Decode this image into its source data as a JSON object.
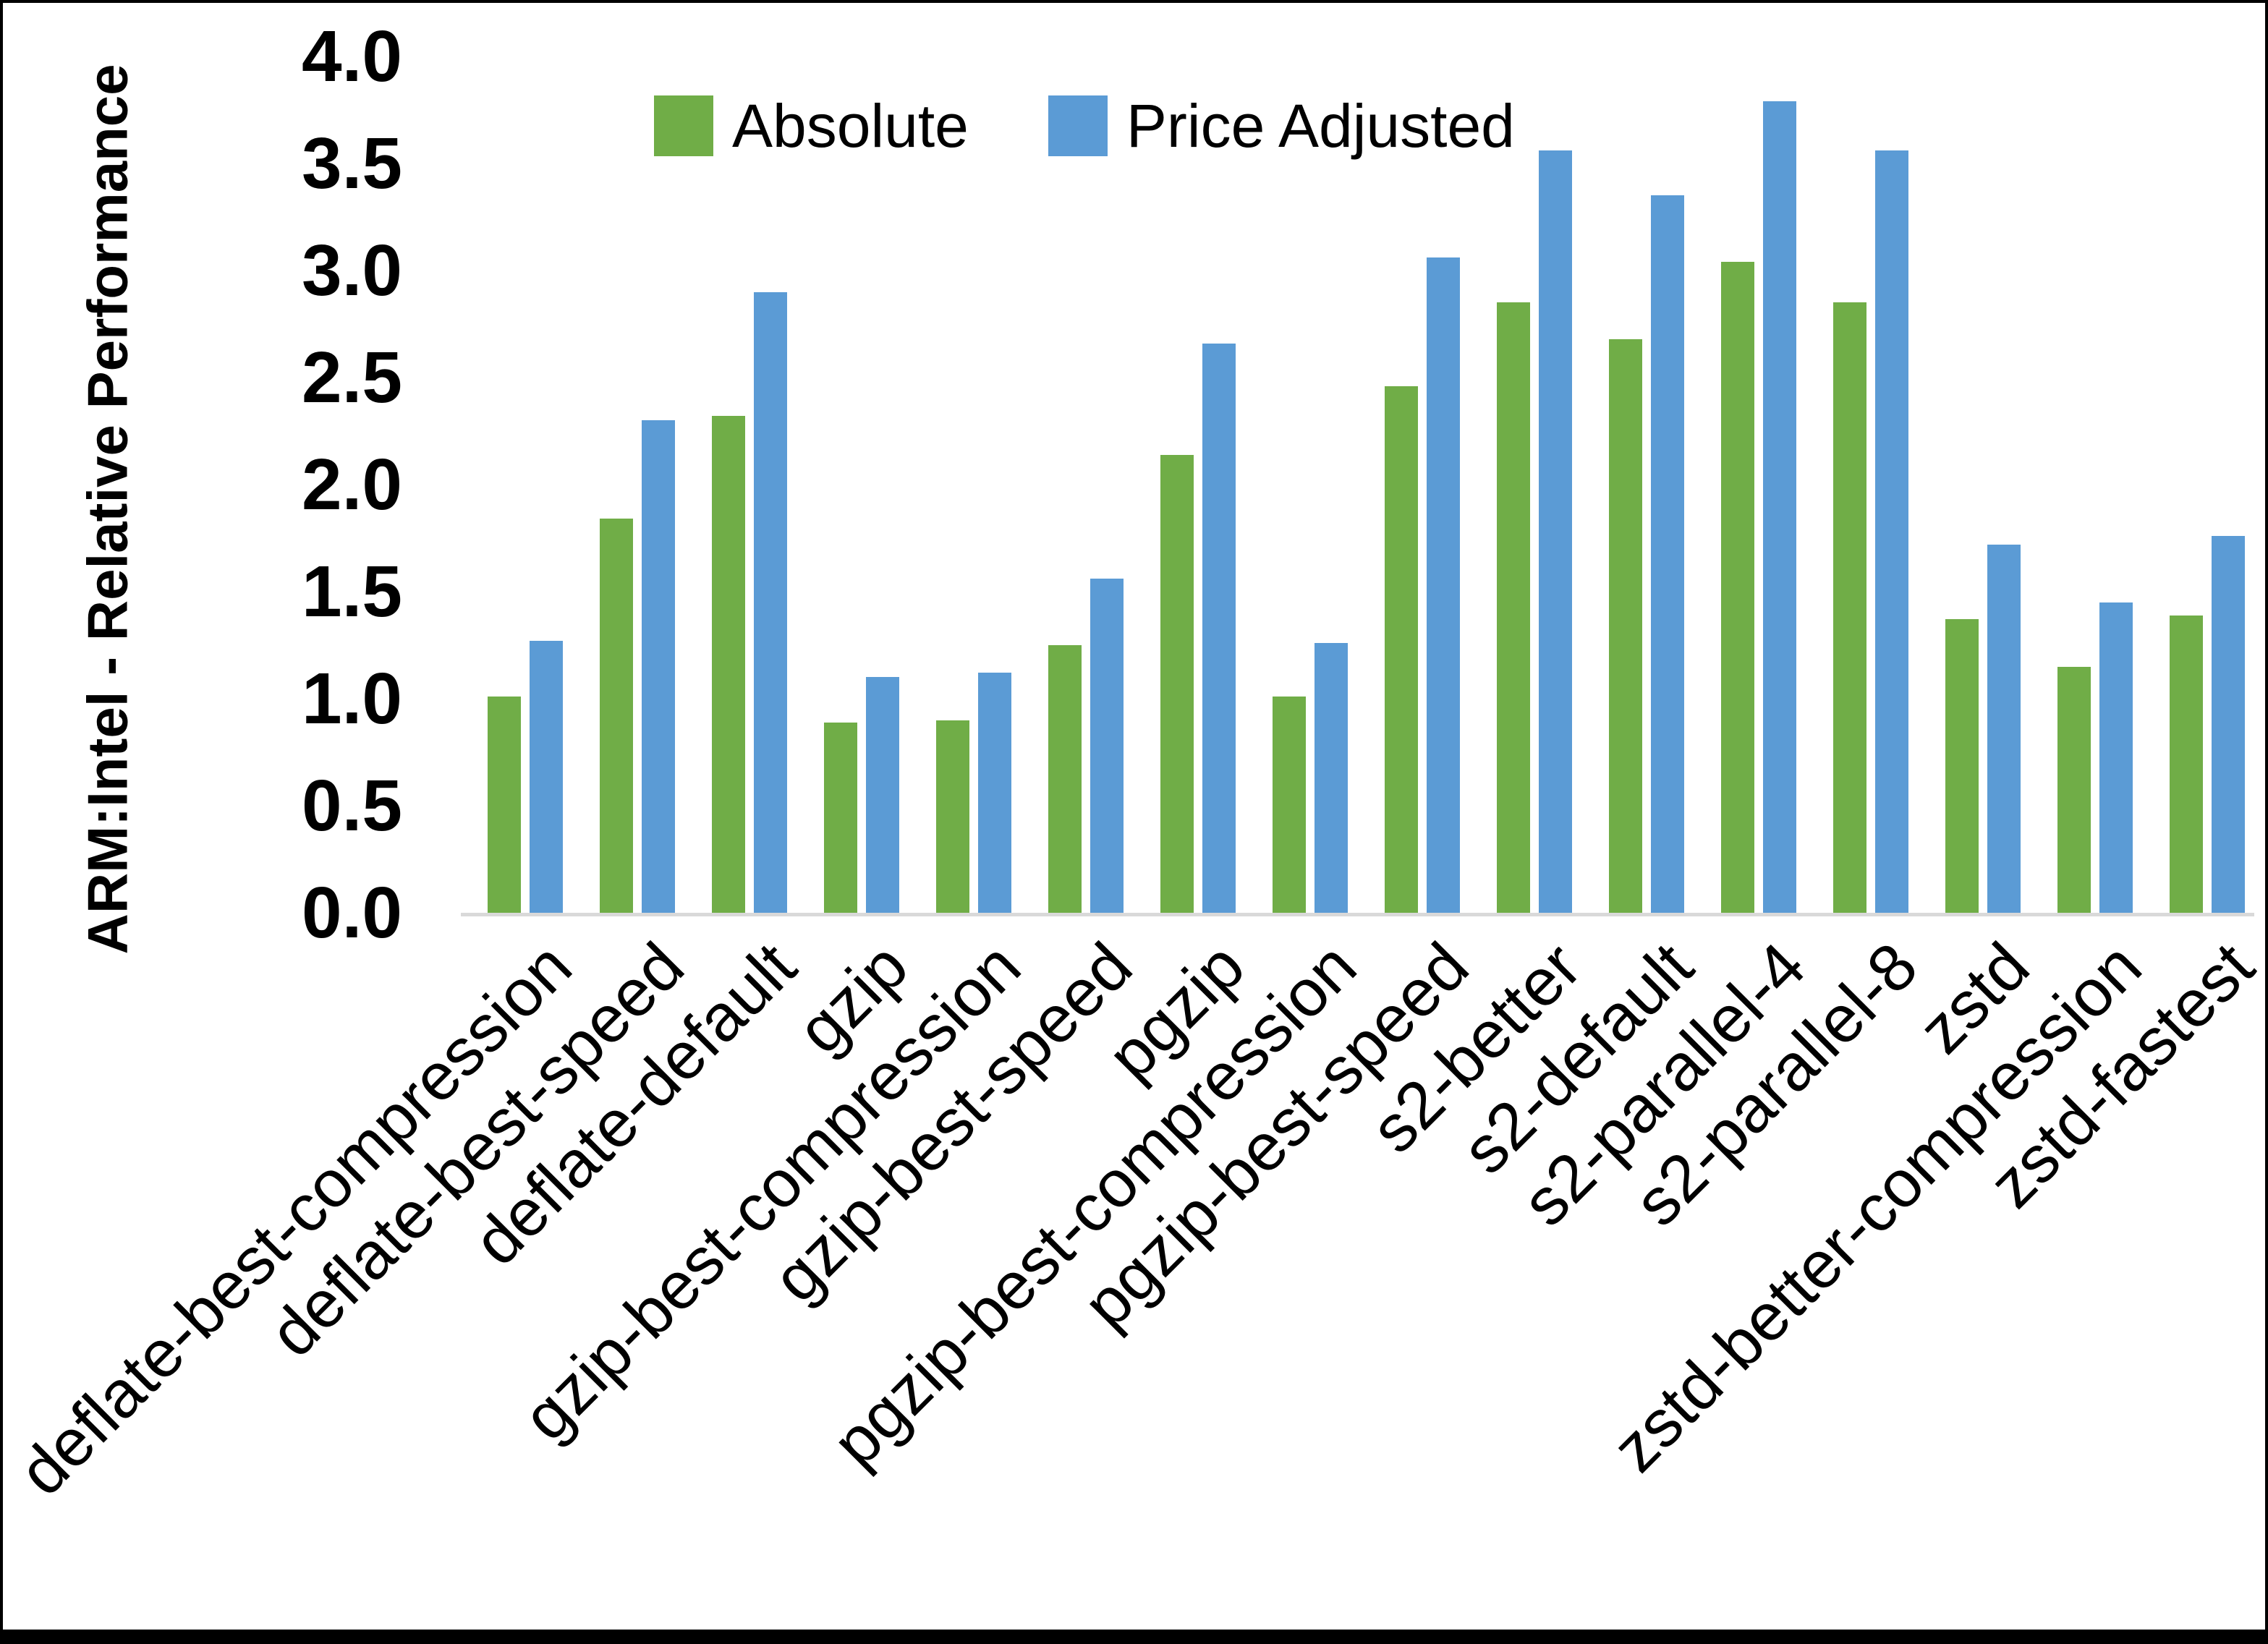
{
  "chart_data": {
    "type": "bar",
    "title": "",
    "xlabel": "",
    "ylabel": "ARM:Intel - Relative Performance",
    "ylim": [
      0.0,
      4.0
    ],
    "ytick_step": 0.5,
    "ytick_labels": [
      "0.0",
      "0.5",
      "1.0",
      "1.5",
      "2.0",
      "2.5",
      "3.0",
      "3.5",
      "4.0"
    ],
    "grid": false,
    "legend_position": "top-center",
    "axis_line_color": "#d9d9d9",
    "categories": [
      "deflate-best-compression",
      "deflate-best-speed",
      "deflate-default",
      "gzip",
      "gzip-best-compression",
      "gzip-best-speed",
      "pgzip",
      "pgzip-best-compression",
      "pgzip-best-speed",
      "s2-better",
      "s2-default",
      "s2-parallel-4",
      "s2-parallel-8",
      "zstd",
      "zstd-better-compression",
      "zstd-fastest"
    ],
    "series": [
      {
        "name": "Absolute",
        "color": "#70AD47",
        "values": [
          1.01,
          1.84,
          2.32,
          0.89,
          0.9,
          1.25,
          2.14,
          1.01,
          2.46,
          2.85,
          2.68,
          3.04,
          2.85,
          1.37,
          1.15,
          1.39
        ]
      },
      {
        "name": "Price Adjusted",
        "color": "#5B9BD5",
        "values": [
          1.27,
          2.3,
          2.9,
          1.1,
          1.12,
          1.56,
          2.66,
          1.26,
          3.06,
          3.56,
          3.35,
          3.79,
          3.56,
          1.72,
          1.45,
          1.76
        ]
      }
    ]
  }
}
